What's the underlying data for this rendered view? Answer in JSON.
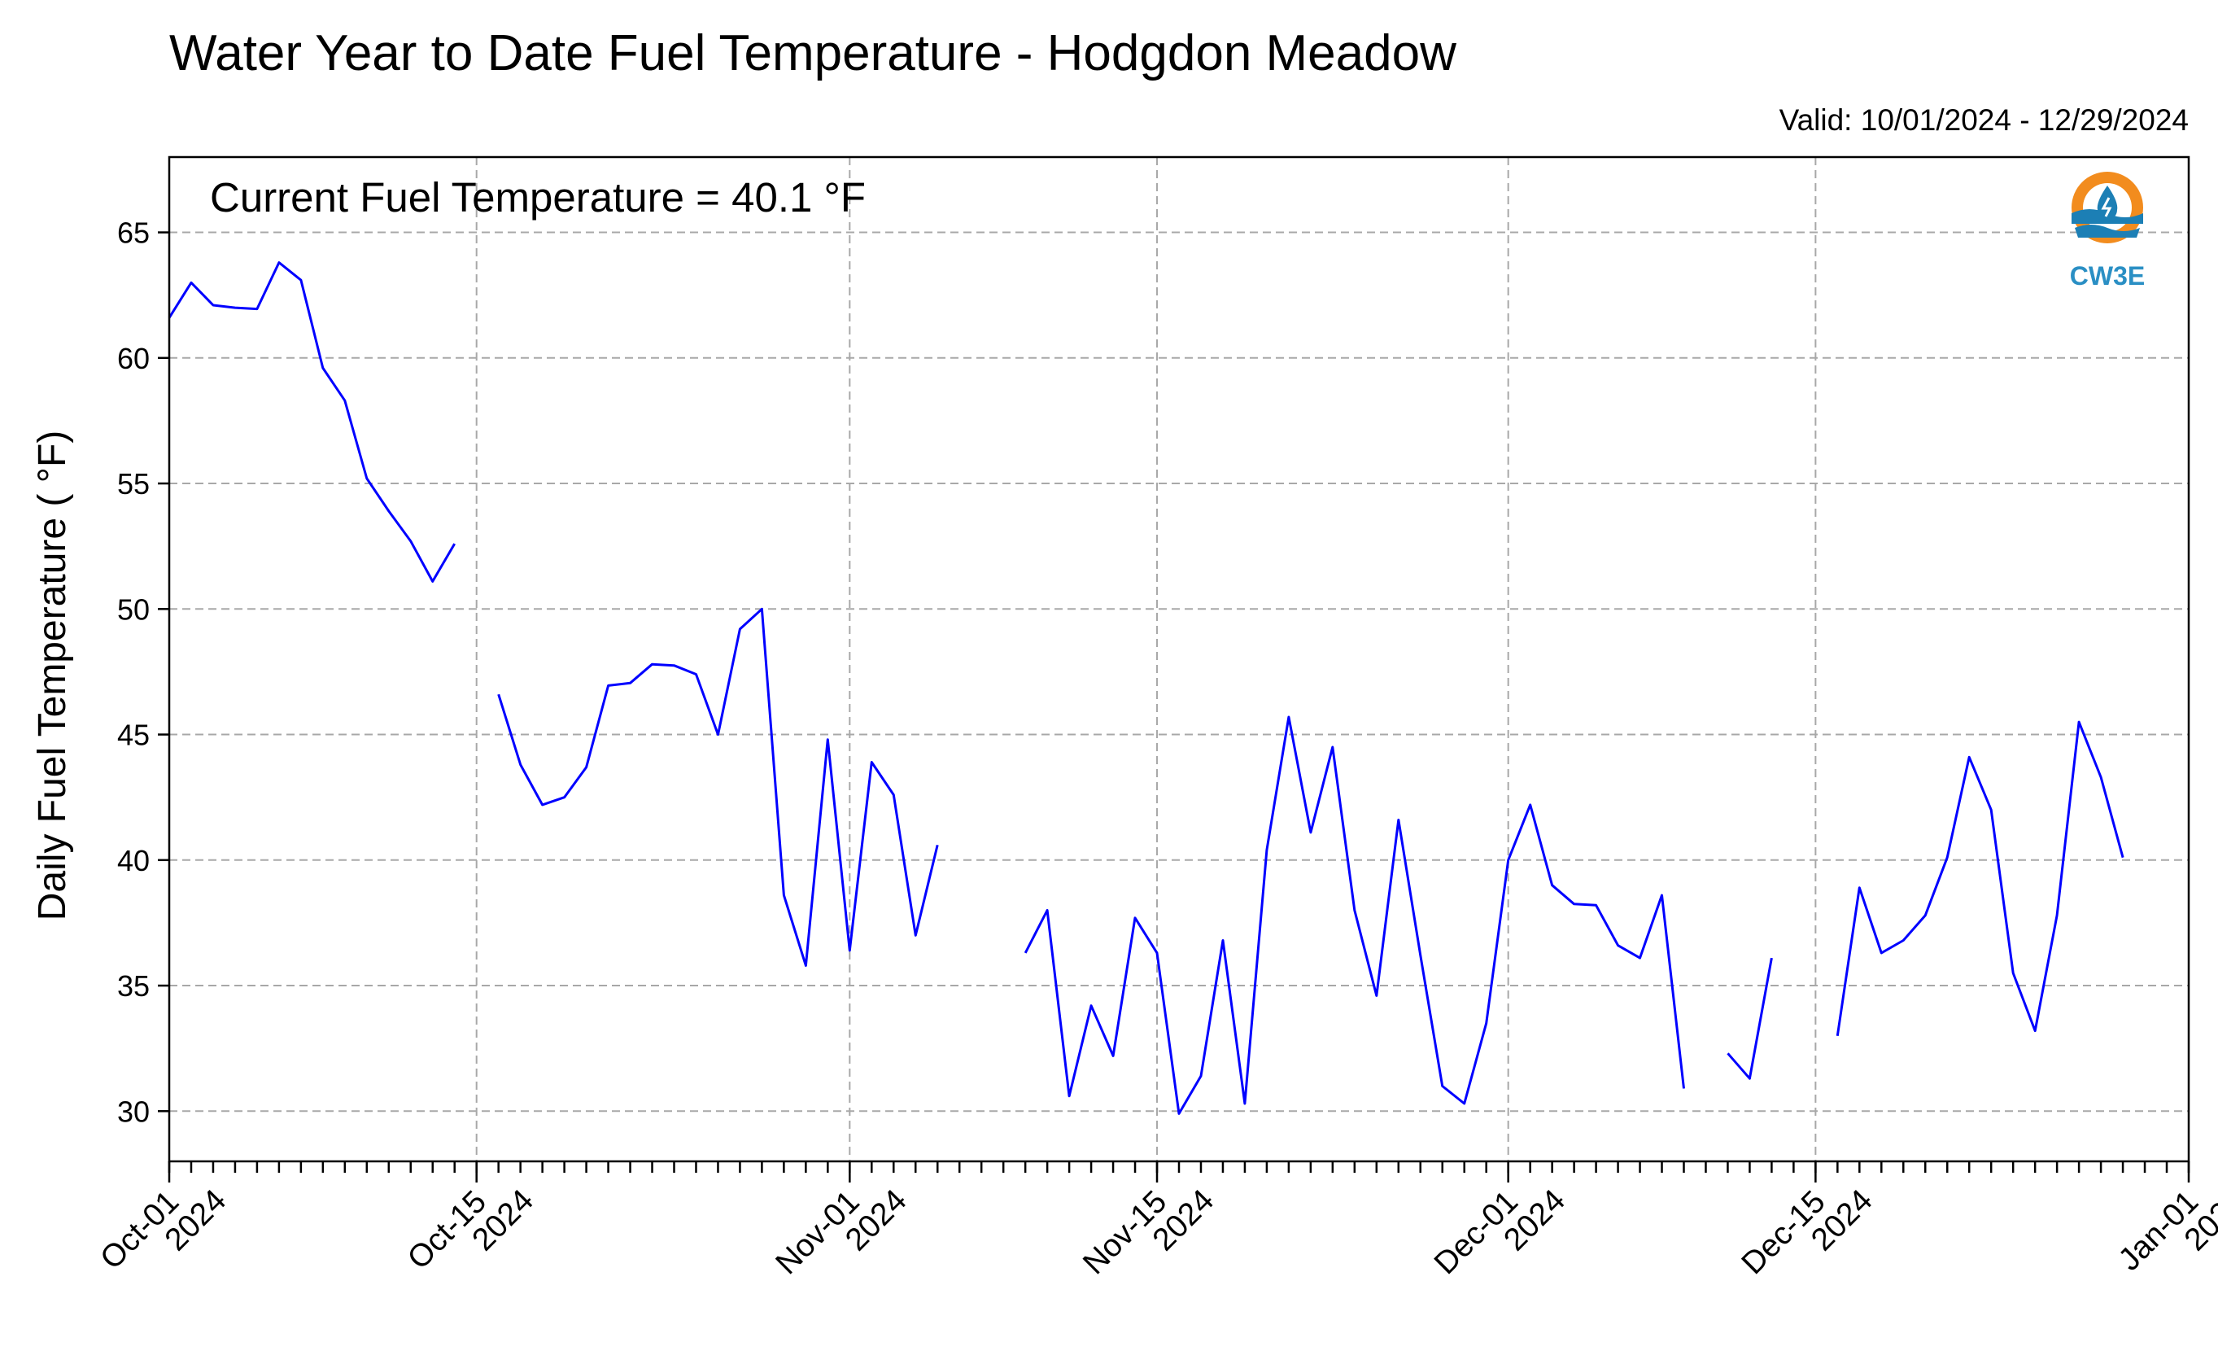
{
  "chart_data": {
    "type": "line",
    "title": "Water Year to Date Fuel Temperature - Hodgdon Meadow",
    "subtitle": "Valid: 10/01/2024 - 12/29/2024",
    "ylabel": "Daily Fuel Temperature ( °F)",
    "xlabel": "",
    "annotation": "Current Fuel Temperature = 40.1  °F",
    "ylim": [
      28,
      68
    ],
    "xlim": [
      "2024-10-01",
      "2025-01-01"
    ],
    "yticks": [
      30,
      35,
      40,
      45,
      50,
      55,
      60,
      65
    ],
    "xticks": [
      {
        "date": "2024-10-01",
        "line1": "Oct-01",
        "line2": "2024"
      },
      {
        "date": "2024-10-15",
        "line1": "Oct-15",
        "line2": "2024"
      },
      {
        "date": "2024-11-01",
        "line1": "Nov-01",
        "line2": "2024"
      },
      {
        "date": "2024-11-15",
        "line1": "Nov-15",
        "line2": "2024"
      },
      {
        "date": "2024-12-01",
        "line1": "Dec-01",
        "line2": "2024"
      },
      {
        "date": "2024-12-15",
        "line1": "Dec-15",
        "line2": "2024"
      },
      {
        "date": "2025-01-01",
        "line1": "Jan-01",
        "line2": "2025"
      }
    ],
    "grid": true,
    "series": [
      {
        "color": "#0000ff",
        "points": [
          [
            "2024-10-01",
            61.6
          ],
          [
            "2024-10-02",
            63.0
          ],
          [
            "2024-10-03",
            62.1
          ],
          [
            "2024-10-04",
            62.0
          ],
          [
            "2024-10-05",
            61.95
          ],
          [
            "2024-10-06",
            63.8
          ],
          [
            "2024-10-07",
            63.1
          ],
          [
            "2024-10-08",
            59.6
          ],
          [
            "2024-10-09",
            58.3
          ],
          [
            "2024-10-10",
            55.2
          ],
          [
            "2024-10-11",
            53.9
          ],
          [
            "2024-10-12",
            52.7
          ],
          [
            "2024-10-13",
            51.1
          ],
          [
            "2024-10-14",
            52.6
          ],
          [
            "2024-10-15",
            null
          ],
          [
            "2024-10-16",
            46.6
          ],
          [
            "2024-10-17",
            43.8
          ],
          [
            "2024-10-18",
            42.2
          ],
          [
            "2024-10-19",
            42.5
          ],
          [
            "2024-10-20",
            43.7
          ],
          [
            "2024-10-21",
            46.95
          ],
          [
            "2024-10-22",
            47.05
          ],
          [
            "2024-10-23",
            47.8
          ],
          [
            "2024-10-24",
            47.75
          ],
          [
            "2024-10-25",
            47.4
          ],
          [
            "2024-10-26",
            45.0
          ],
          [
            "2024-10-27",
            49.2
          ],
          [
            "2024-10-28",
            50.0
          ],
          [
            "2024-10-29",
            38.6
          ],
          [
            "2024-10-30",
            35.8
          ],
          [
            "2024-10-31",
            44.8
          ],
          [
            "2024-11-01",
            36.4
          ],
          [
            "2024-11-02",
            43.9
          ],
          [
            "2024-11-03",
            42.6
          ],
          [
            "2024-11-04",
            37.0
          ],
          [
            "2024-11-05",
            40.6
          ],
          [
            "2024-11-06",
            null
          ],
          [
            "2024-11-07",
            null
          ],
          [
            "2024-11-08",
            null
          ],
          [
            "2024-11-09",
            36.3
          ],
          [
            "2024-11-10",
            38.0
          ],
          [
            "2024-11-11",
            30.6
          ],
          [
            "2024-11-12",
            34.2
          ],
          [
            "2024-11-13",
            32.2
          ],
          [
            "2024-11-14",
            37.7
          ],
          [
            "2024-11-15",
            36.3
          ],
          [
            "2024-11-16",
            29.9
          ],
          [
            "2024-11-17",
            31.4
          ],
          [
            "2024-11-18",
            36.8
          ],
          [
            "2024-11-19",
            30.3
          ],
          [
            "2024-11-20",
            40.4
          ],
          [
            "2024-11-21",
            45.7
          ],
          [
            "2024-11-22",
            41.1
          ],
          [
            "2024-11-23",
            44.5
          ],
          [
            "2024-11-24",
            38.0
          ],
          [
            "2024-11-25",
            34.6
          ],
          [
            "2024-11-26",
            41.6
          ],
          [
            "2024-11-27",
            36.2
          ],
          [
            "2024-11-28",
            31.0
          ],
          [
            "2024-11-29",
            30.3
          ],
          [
            "2024-11-30",
            33.5
          ],
          [
            "2024-12-01",
            40.0
          ],
          [
            "2024-12-02",
            42.2
          ],
          [
            "2024-12-03",
            39.0
          ],
          [
            "2024-12-04",
            38.25
          ],
          [
            "2024-12-05",
            38.2
          ],
          [
            "2024-12-06",
            36.6
          ],
          [
            "2024-12-07",
            36.1
          ],
          [
            "2024-12-08",
            38.6
          ],
          [
            "2024-12-09",
            30.9
          ],
          [
            "2024-12-10",
            null
          ],
          [
            "2024-12-11",
            32.3
          ],
          [
            "2024-12-12",
            31.3
          ],
          [
            "2024-12-13",
            36.1
          ],
          [
            "2024-12-14",
            null
          ],
          [
            "2024-12-15",
            null
          ],
          [
            "2024-12-16",
            33.0
          ],
          [
            "2024-12-17",
            38.9
          ],
          [
            "2024-12-18",
            36.3
          ],
          [
            "2024-12-19",
            36.8
          ],
          [
            "2024-12-20",
            37.8
          ],
          [
            "2024-12-21",
            40.1
          ],
          [
            "2024-12-22",
            44.1
          ],
          [
            "2024-12-23",
            42.0
          ],
          [
            "2024-12-24",
            35.5
          ],
          [
            "2024-12-25",
            33.2
          ],
          [
            "2024-12-26",
            37.8
          ],
          [
            "2024-12-27",
            45.5
          ],
          [
            "2024-12-28",
            43.3
          ],
          [
            "2024-12-29",
            40.1
          ]
        ]
      }
    ]
  },
  "logo": {
    "text": "CW3E",
    "ring_color": "#f28c1e",
    "wave_color": "#1c7fb5",
    "text_color": "#2a8fc4",
    "icon": "water-drop-icon"
  }
}
